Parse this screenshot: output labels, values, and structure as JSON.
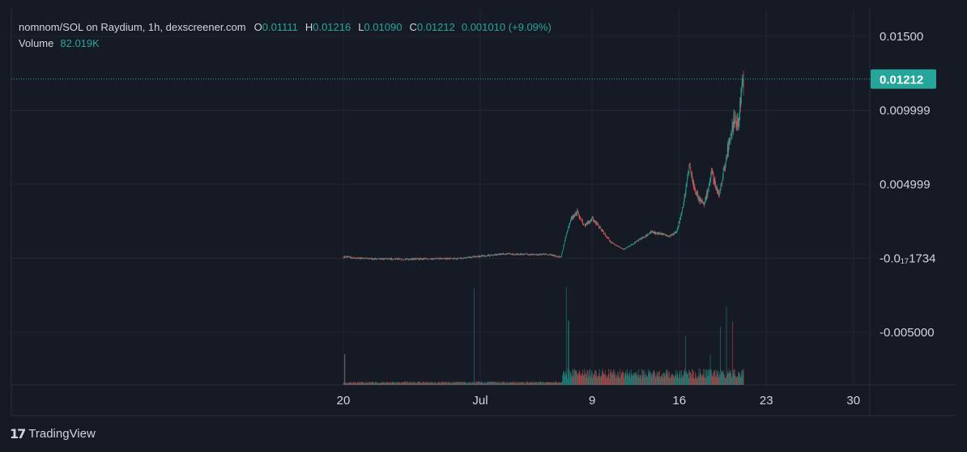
{
  "header": {
    "symbol_text": "nomnom/SOL on Raydium, 1h, dexscreener.com",
    "ohlc": [
      {
        "key": "O",
        "value": "0.01111"
      },
      {
        "key": "H",
        "value": "0.01216"
      },
      {
        "key": "L",
        "value": "0.01090"
      },
      {
        "key": "C",
        "value": "0.01212"
      }
    ],
    "change": "0.001010 (+9.09%)",
    "volume_label": "Volume",
    "volume_value": "82.019K"
  },
  "branding": {
    "logo_text": "TradingView",
    "logo_mark": "17"
  },
  "colors": {
    "up": "#26a69a",
    "down": "#ef5350",
    "background": "#161a25",
    "grid": "#232734",
    "text": "#d1d4dc",
    "price_label_bg": "#26a69a"
  },
  "chart_data": {
    "type": "candlestick",
    "interval": "1h",
    "x_axis": {
      "ticks": [
        "20",
        "Jul",
        "9",
        "16",
        "23",
        "30"
      ]
    },
    "y_axis": {
      "tick_labels": [
        "0.01500",
        "0.009999",
        "0.004999",
        "-0.0₁₇1734",
        "-0.005000"
      ],
      "tick_values": [
        0.015,
        0.01,
        0.005,
        0,
        -0.005
      ],
      "range": [
        -0.0085,
        0.0173
      ]
    },
    "last_price": {
      "label": "0.01212",
      "value": 0.01212
    },
    "price_series": {
      "anchors": [
        [
          0.0,
          0.0001
        ],
        [
          2.0,
          -3e-05
        ],
        [
          5.0,
          -5e-05
        ],
        [
          9.0,
          -2e-05
        ],
        [
          13.0,
          0.0003
        ],
        [
          16.5,
          0.00025
        ],
        [
          17.5,
          0.0001
        ],
        [
          17.8,
          0.0012
        ],
        [
          18.3,
          0.0027
        ],
        [
          18.8,
          0.0031
        ],
        [
          19.4,
          0.0022
        ],
        [
          20.0,
          0.0027
        ],
        [
          20.6,
          0.0021
        ],
        [
          21.5,
          0.0011
        ],
        [
          22.5,
          0.0006
        ],
        [
          23.5,
          0.0011
        ],
        [
          24.8,
          0.0018
        ],
        [
          26.2,
          0.0015
        ],
        [
          26.8,
          0.0018
        ],
        [
          27.3,
          0.0035
        ],
        [
          27.8,
          0.0063
        ],
        [
          28.3,
          0.0044
        ],
        [
          29.0,
          0.0036
        ],
        [
          29.6,
          0.0057
        ],
        [
          30.2,
          0.0043
        ],
        [
          30.5,
          0.0056
        ],
        [
          30.9,
          0.0074
        ],
        [
          31.4,
          0.0094
        ],
        [
          31.7,
          0.009
        ],
        [
          32.0,
          0.0112
        ],
        [
          32.2,
          0.01212
        ]
      ],
      "high": 0.01216,
      "low": -7e-05
    },
    "volume_series": {
      "spikes": [
        [
          0.1,
          0.3
        ],
        [
          10.5,
          0.95
        ],
        [
          17.9,
          0.96
        ],
        [
          18.1,
          0.63
        ],
        [
          27.5,
          0.48
        ],
        [
          29.5,
          0.3
        ],
        [
          30.3,
          0.57
        ],
        [
          30.8,
          0.77
        ],
        [
          31.3,
          0.62
        ]
      ]
    }
  }
}
